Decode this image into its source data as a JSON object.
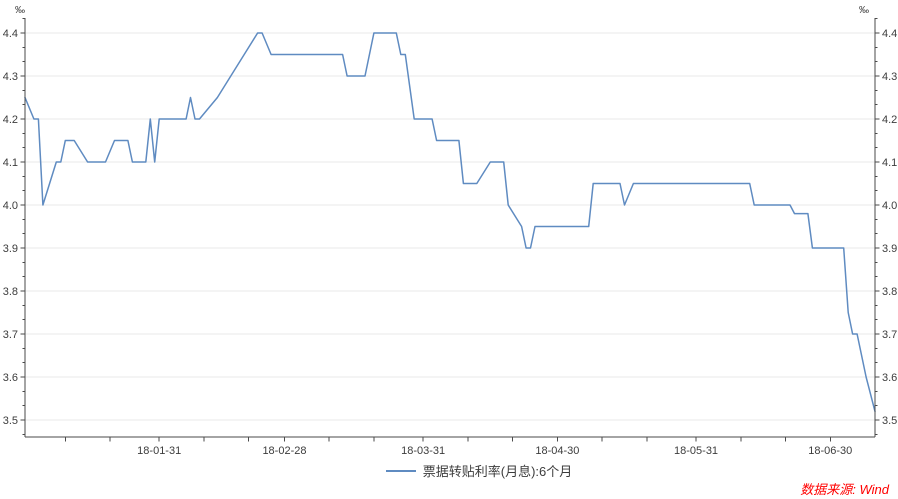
{
  "chart_meta": {
    "unit_left": "‰",
    "unit_right": "‰",
    "source_label": "数据来源: Wind",
    "colors": {
      "line": "#5f8bc1",
      "grid": "#eaeaea",
      "axis": "#4a4a4a",
      "tick_label": "#3c3c3c",
      "source_text": "#ff0000",
      "background": "#ffffff"
    }
  },
  "chart_data": {
    "type": "line",
    "title": "",
    "unit": "‰",
    "grid": "horizontal",
    "legend_position": "bottom-center",
    "x_range": [
      "2018-01-01",
      "2018-07-10"
    ],
    "ylim": [
      3.5,
      4.4
    ],
    "y_step": 0.1,
    "y_tick_labels": [
      "3.5",
      "3.6",
      "3.7",
      "3.8",
      "3.9",
      "4.0",
      "4.1",
      "4.2",
      "4.3",
      "4.4"
    ],
    "x_ticks": [
      {
        "date": "2018-01-10",
        "label": ""
      },
      {
        "date": "2018-01-20",
        "label": ""
      },
      {
        "date": "2018-01-31",
        "label": "18-01-31"
      },
      {
        "date": "2018-02-10",
        "label": ""
      },
      {
        "date": "2018-02-20",
        "label": ""
      },
      {
        "date": "2018-02-28",
        "label": "18-02-28"
      },
      {
        "date": "2018-03-10",
        "label": ""
      },
      {
        "date": "2018-03-20",
        "label": ""
      },
      {
        "date": "2018-03-31",
        "label": "18-03-31"
      },
      {
        "date": "2018-04-10",
        "label": ""
      },
      {
        "date": "2018-04-20",
        "label": ""
      },
      {
        "date": "2018-04-30",
        "label": "18-04-30"
      },
      {
        "date": "2018-05-10",
        "label": ""
      },
      {
        "date": "2018-05-20",
        "label": ""
      },
      {
        "date": "2018-05-31",
        "label": "18-05-31"
      },
      {
        "date": "2018-06-10",
        "label": ""
      },
      {
        "date": "2018-06-20",
        "label": ""
      },
      {
        "date": "2018-06-30",
        "label": "18-06-30"
      }
    ],
    "series": [
      {
        "name": "票据转贴利率(月息):6个月",
        "color": "#5f8bc1",
        "points": [
          [
            "2018-01-01",
            4.25
          ],
          [
            "2018-01-03",
            4.2
          ],
          [
            "2018-01-04",
            4.2
          ],
          [
            "2018-01-05",
            4.0
          ],
          [
            "2018-01-08",
            4.1
          ],
          [
            "2018-01-09",
            4.1
          ],
          [
            "2018-01-10",
            4.15
          ],
          [
            "2018-01-12",
            4.15
          ],
          [
            "2018-01-15",
            4.1
          ],
          [
            "2018-01-19",
            4.1
          ],
          [
            "2018-01-21",
            4.15
          ],
          [
            "2018-01-24",
            4.15
          ],
          [
            "2018-01-25",
            4.1
          ],
          [
            "2018-01-28",
            4.1
          ],
          [
            "2018-01-29",
            4.2
          ],
          [
            "2018-01-30",
            4.1
          ],
          [
            "2018-01-31",
            4.2
          ],
          [
            "2018-02-06",
            4.2
          ],
          [
            "2018-02-07",
            4.25
          ],
          [
            "2018-02-08",
            4.2
          ],
          [
            "2018-02-09",
            4.2
          ],
          [
            "2018-02-13",
            4.25
          ],
          [
            "2018-02-16",
            4.3
          ],
          [
            "2018-02-19",
            4.35
          ],
          [
            "2018-02-22",
            4.4
          ],
          [
            "2018-02-23",
            4.4
          ],
          [
            "2018-02-25",
            4.35
          ],
          [
            "2018-03-13",
            4.35
          ],
          [
            "2018-03-14",
            4.3
          ],
          [
            "2018-03-18",
            4.3
          ],
          [
            "2018-03-20",
            4.4
          ],
          [
            "2018-03-25",
            4.4
          ],
          [
            "2018-03-26",
            4.35
          ],
          [
            "2018-03-27",
            4.35
          ],
          [
            "2018-03-29",
            4.2
          ],
          [
            "2018-04-02",
            4.2
          ],
          [
            "2018-04-03",
            4.15
          ],
          [
            "2018-04-08",
            4.15
          ],
          [
            "2018-04-09",
            4.05
          ],
          [
            "2018-04-12",
            4.05
          ],
          [
            "2018-04-15",
            4.1
          ],
          [
            "2018-04-18",
            4.1
          ],
          [
            "2018-04-19",
            4.0
          ],
          [
            "2018-04-22",
            3.95
          ],
          [
            "2018-04-23",
            3.9
          ],
          [
            "2018-04-24",
            3.9
          ],
          [
            "2018-04-25",
            3.95
          ],
          [
            "2018-05-07",
            3.95
          ],
          [
            "2018-05-08",
            4.05
          ],
          [
            "2018-05-14",
            4.05
          ],
          [
            "2018-05-15",
            4.0
          ],
          [
            "2018-05-17",
            4.05
          ],
          [
            "2018-06-12",
            4.05
          ],
          [
            "2018-06-13",
            4.0
          ],
          [
            "2018-06-21",
            4.0
          ],
          [
            "2018-06-22",
            3.98
          ],
          [
            "2018-06-25",
            3.98
          ],
          [
            "2018-06-26",
            3.9
          ],
          [
            "2018-07-03",
            3.9
          ],
          [
            "2018-07-04",
            3.75
          ],
          [
            "2018-07-05",
            3.7
          ],
          [
            "2018-07-06",
            3.7
          ],
          [
            "2018-07-08",
            3.6
          ],
          [
            "2018-07-10",
            3.52
          ]
        ]
      }
    ]
  }
}
